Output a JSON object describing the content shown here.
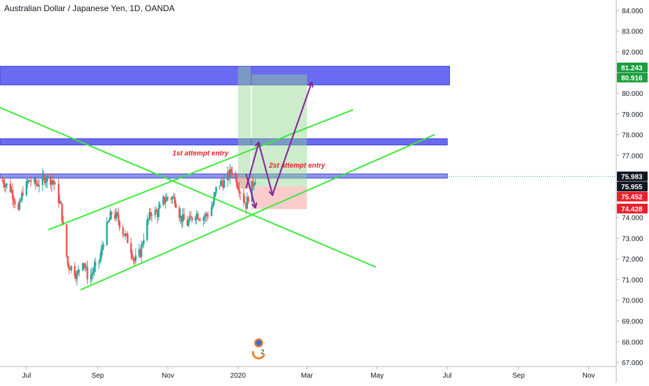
{
  "chart_data": {
    "type": "candlestick",
    "title": "Australian Dollar / Japanese Yen, 1D, OANDA",
    "ylim": [
      66.8,
      84.5
    ],
    "xlim": [
      "2019-06-08",
      "2020-11-25"
    ],
    "y_ticks": [
      "84.000",
      "83.000",
      "82.000",
      "80.000",
      "79.000",
      "78.000",
      "77.000",
      "74.000",
      "73.000",
      "72.000",
      "71.000",
      "70.000",
      "69.000",
      "68.000",
      "67.000"
    ],
    "y_tick_values": [
      84,
      83,
      82,
      80,
      79,
      78,
      77,
      74,
      73,
      72,
      71,
      70,
      69,
      68,
      67
    ],
    "x_ticks": [
      {
        "label": "Jul",
        "date": "2019-07-01"
      },
      {
        "label": "Sep",
        "date": "2019-09-01"
      },
      {
        "label": "Nov",
        "date": "2019-11-01"
      },
      {
        "label": "2020",
        "date": "2020-01-01"
      },
      {
        "label": "Mar",
        "date": "2020-03-01"
      },
      {
        "label": "May",
        "date": "2020-05-01"
      },
      {
        "label": "Jul",
        "date": "2020-07-01"
      },
      {
        "label": "Sep",
        "date": "2020-09-01"
      },
      {
        "label": "Nov",
        "date": "2020-11-01"
      }
    ],
    "price_badges": [
      {
        "label": "81.243",
        "value": 81.243,
        "color": "#1e9e3e"
      },
      {
        "label": "80.916",
        "value": 80.916,
        "color": "#1e9e3e"
      },
      {
        "label": "75.983",
        "value": 75.983,
        "color": "#131722"
      },
      {
        "label": "75.955",
        "value": 75.955,
        "color": "#131722"
      },
      {
        "label": "75.452",
        "value": 75.452,
        "color": "#e8202a"
      },
      {
        "label": "74.428",
        "value": 74.428,
        "color": "#e8202a"
      }
    ],
    "last_price": 75.983,
    "price_path": [
      [
        "2019-06-10",
        75.8
      ],
      [
        "2019-06-18",
        75.3
      ],
      [
        "2019-06-24",
        74.3
      ],
      [
        "2019-06-28",
        75.3
      ],
      [
        "2019-07-04",
        75.8
      ],
      [
        "2019-07-10",
        75.6
      ],
      [
        "2019-07-17",
        75.9
      ],
      [
        "2019-07-24",
        75.8
      ],
      [
        "2019-07-31",
        74.5
      ],
      [
        "2019-08-03",
        73.0
      ],
      [
        "2019-08-06",
        71.7
      ],
      [
        "2019-08-09",
        71.6
      ],
      [
        "2019-08-14",
        71.2
      ],
      [
        "2019-08-19",
        72.0
      ],
      [
        "2019-08-24",
        71.0
      ],
      [
        "2019-08-29",
        71.5
      ],
      [
        "2019-09-03",
        72.0
      ],
      [
        "2019-09-07",
        73.2
      ],
      [
        "2019-09-13",
        74.2
      ],
      [
        "2019-09-18",
        74.0
      ],
      [
        "2019-09-23",
        73.3
      ],
      [
        "2019-09-28",
        72.8
      ],
      [
        "2019-10-03",
        71.9
      ],
      [
        "2019-10-08",
        72.3
      ],
      [
        "2019-10-13",
        73.6
      ],
      [
        "2019-10-18",
        74.3
      ],
      [
        "2019-10-23",
        74.2
      ],
      [
        "2019-10-28",
        74.8
      ],
      [
        "2019-11-02",
        75.0
      ],
      [
        "2019-11-07",
        74.9
      ],
      [
        "2019-11-12",
        74.0
      ],
      [
        "2019-11-18",
        73.7
      ],
      [
        "2019-11-25",
        74.2
      ],
      [
        "2019-11-30",
        74.0
      ],
      [
        "2019-12-05",
        74.1
      ],
      [
        "2019-12-10",
        74.6
      ],
      [
        "2019-12-14",
        75.6
      ],
      [
        "2019-12-20",
        75.7
      ],
      [
        "2019-12-27",
        76.3
      ],
      [
        "2020-01-03",
        75.3
      ],
      [
        "2020-01-08",
        74.6
      ],
      [
        "2020-01-12",
        75.4
      ],
      [
        "2020-01-16",
        75.9
      ]
    ],
    "lines": [
      {
        "from": [
          "2019-06-08",
          79.3
        ],
        "to": [
          "2020-04-30",
          71.6
        ],
        "color": "#3bea3b"
      },
      {
        "from": [
          "2019-07-20",
          73.4
        ],
        "to": [
          "2020-04-10",
          79.2
        ],
        "color": "#3bea3b"
      },
      {
        "from": [
          "2019-08-17",
          70.5
        ],
        "to": [
          "2020-06-20",
          78.0
        ],
        "color": "#3bea3b"
      }
    ],
    "zones": [
      {
        "from": "2019-06-08",
        "to": "2020-07-03",
        "ymin": 80.4,
        "ymax": 81.3,
        "color": "#5b5bf0"
      },
      {
        "from": "2019-06-08",
        "to": "2020-07-01",
        "ymin": 77.5,
        "ymax": 77.8,
        "color": "#5b5bf0"
      },
      {
        "from": "2019-06-08",
        "to": "2020-07-01",
        "ymin": 75.9,
        "ymax": 76.1,
        "color": "#8b8bf0"
      }
    ],
    "positions": [
      {
        "from": "2020-01-01",
        "to": "2020-01-12",
        "entry": 75.4,
        "target": 81.3,
        "stop": 75.95
      },
      {
        "from": "2020-01-13",
        "to": "2020-03-01",
        "entry": 75.5,
        "target": 80.9,
        "stop": 74.4
      }
    ],
    "path_arrows": [
      [
        [
          "2020-01-08",
          75.4
        ],
        [
          "2020-01-19",
          77.6
        ],
        [
          "2020-01-31",
          75.1
        ],
        [
          "2020-03-05",
          80.5
        ]
      ],
      [
        [
          "2020-01-08",
          76.1
        ],
        [
          "2020-01-16",
          74.5
        ]
      ]
    ],
    "annotations": [
      {
        "text": "1st attempt entry",
        "date": "2019-11-05",
        "value": 77.0,
        "color": "#e8202a"
      },
      {
        "text": "2st attempt entry",
        "date": "2020-01-28",
        "value": 76.4,
        "color": "#e8202a"
      }
    ],
    "logo_text": "2"
  }
}
